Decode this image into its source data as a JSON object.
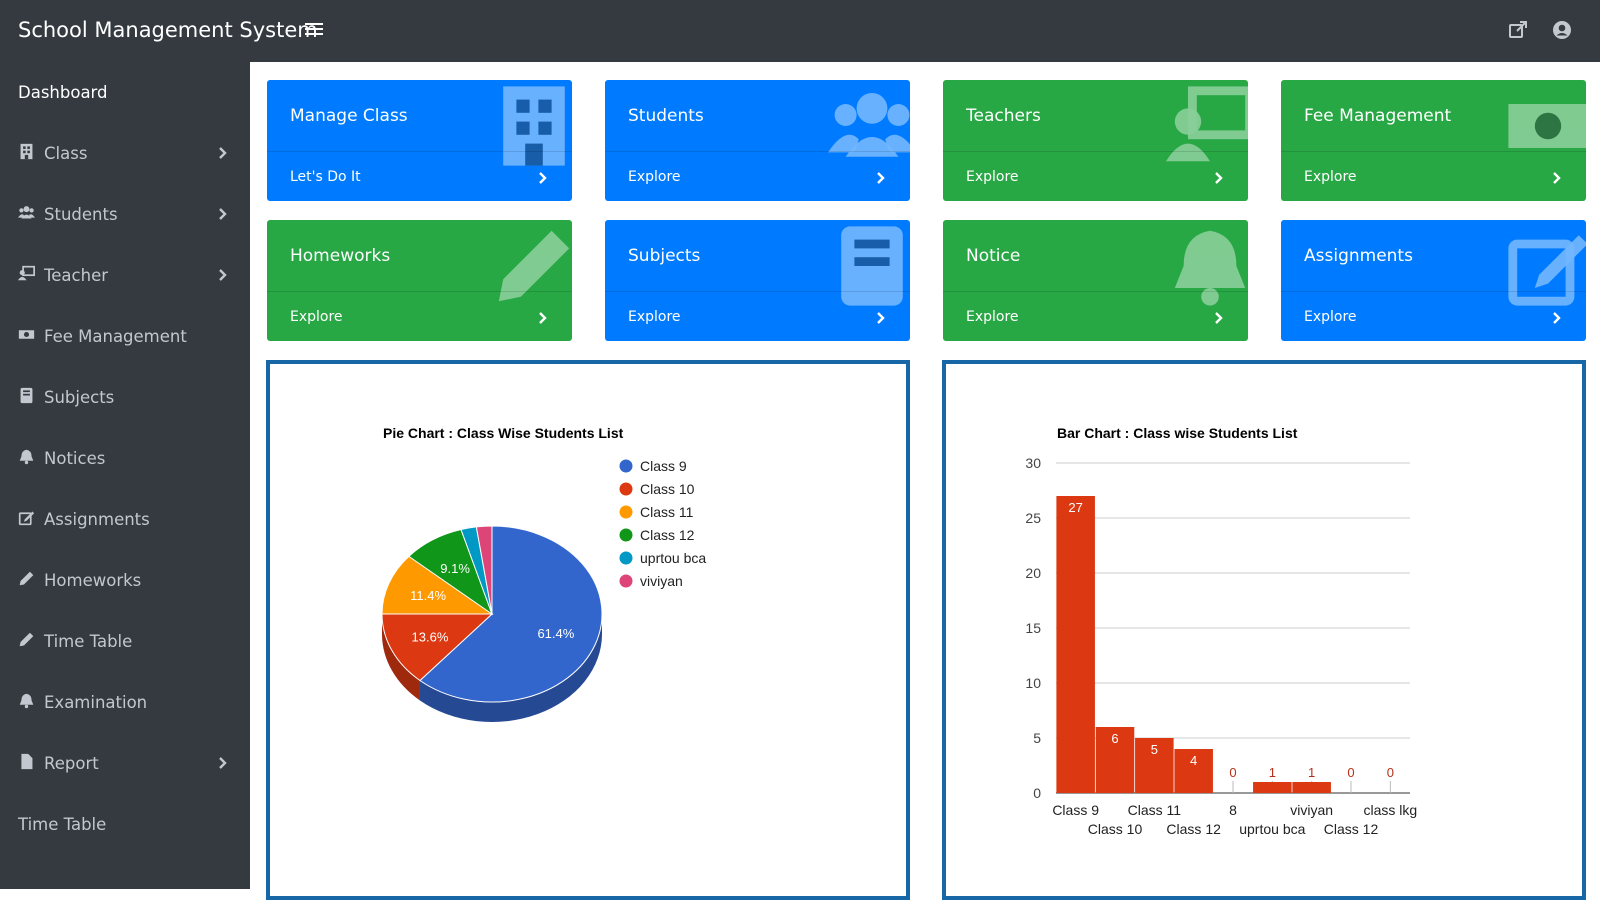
{
  "header": {
    "title": "School Management System"
  },
  "sidebar": {
    "items": [
      {
        "label": "Dashboard",
        "icon": "",
        "chevron": false
      },
      {
        "label": "Class",
        "icon": "building-icon",
        "chevron": true
      },
      {
        "label": "Students",
        "icon": "users-icon",
        "chevron": true
      },
      {
        "label": "Teacher",
        "icon": "chalkboard-teacher-icon",
        "chevron": true
      },
      {
        "label": "Fee Management",
        "icon": "money-bill-icon",
        "chevron": false
      },
      {
        "label": "Subjects",
        "icon": "book-icon",
        "chevron": false
      },
      {
        "label": "Notices",
        "icon": "bell-icon",
        "chevron": false
      },
      {
        "label": "Assignments",
        "icon": "edit-icon",
        "chevron": false
      },
      {
        "label": "Homeworks",
        "icon": "pencil-icon",
        "chevron": false
      },
      {
        "label": "Time Table",
        "icon": "pencil-icon",
        "chevron": false
      },
      {
        "label": "Examination",
        "icon": "bell-icon",
        "chevron": false
      },
      {
        "label": "Report",
        "icon": "file-icon",
        "chevron": true
      },
      {
        "label": "Time Table",
        "icon": "",
        "chevron": false
      }
    ]
  },
  "cards": [
    {
      "title": "Manage Class",
      "footer": "Let's Do It",
      "color": "#007bff",
      "icon": "building-icon"
    },
    {
      "title": "Students",
      "footer": "Explore",
      "color": "#007bff",
      "icon": "users-icon"
    },
    {
      "title": "Teachers",
      "footer": "Explore",
      "color": "#28a745",
      "icon": "chalkboard-teacher-icon"
    },
    {
      "title": "Fee Management",
      "footer": "Explore",
      "color": "#28a745",
      "icon": "money-bill-icon"
    },
    {
      "title": "Homeworks",
      "footer": "Explore",
      "color": "#28a745",
      "icon": "pencil-icon"
    },
    {
      "title": "Subjects",
      "footer": "Explore",
      "color": "#007bff",
      "icon": "book-icon"
    },
    {
      "title": "Notice",
      "footer": "Explore",
      "color": "#28a745",
      "icon": "bell-icon"
    },
    {
      "title": "Assignments",
      "footer": "Explore",
      "color": "#007bff",
      "icon": "edit-icon"
    }
  ],
  "chart_data": [
    {
      "type": "pie",
      "title": "Pie Chart : Class Wise Students List",
      "categories": [
        "Class 9",
        "Class 10",
        "Class 11",
        "Class 12",
        "uprtou bca",
        "viviyan"
      ],
      "values": [
        27,
        6,
        5,
        4,
        1,
        1
      ],
      "percent_labels": [
        "61.4%",
        "13.6%",
        "11.4%",
        "9.1%",
        "",
        ""
      ],
      "colors": [
        "#3366cc",
        "#dc3912",
        "#ff9900",
        "#109618",
        "#0099c6",
        "#dd4477"
      ],
      "legend": "right",
      "is3D": true
    },
    {
      "type": "bar",
      "title": "Bar Chart : Class wise Students List",
      "categories": [
        "Class 9",
        "Class 10",
        "Class 11",
        "Class 12",
        "8",
        "uprtou bca",
        "viviyan",
        "Class 12",
        "class lkg"
      ],
      "values": [
        27,
        6,
        5,
        4,
        0,
        1,
        1,
        0,
        0
      ],
      "ylim": [
        0,
        30
      ],
      "yticks": [
        0,
        5,
        10,
        15,
        20,
        25,
        30
      ],
      "color": "#dc3912",
      "grid": true
    }
  ]
}
